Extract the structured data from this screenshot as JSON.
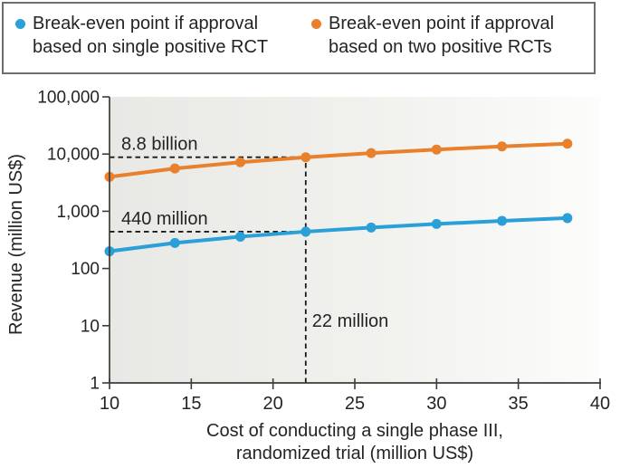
{
  "legend": {
    "items": [
      {
        "label": "Break-even point if approval based on single positive RCT",
        "color": "#2b9fd8"
      },
      {
        "label": "Break-even point if approval based on two positive RCTs",
        "color": "#e8802c"
      }
    ]
  },
  "chart_data": {
    "type": "line",
    "x": [
      10,
      14,
      18,
      22,
      26,
      30,
      34,
      38
    ],
    "series": [
      {
        "name": "Break-even point if approval based on single positive RCT",
        "color": "#2b9fd8",
        "values": [
          200,
          280,
          360,
          440,
          520,
          600,
          680,
          760
        ]
      },
      {
        "name": "Break-even point if approval based on two positive RCTs",
        "color": "#e8802c",
        "values": [
          4000,
          5600,
          7200,
          8800,
          10400,
          12000,
          13600,
          15200
        ]
      }
    ],
    "xlabel_lines": [
      "Cost of conducting a single phase III,",
      "randomized trial (million US$)"
    ],
    "ylabel": "Revenue (million US$)",
    "x_ticks": [
      10,
      15,
      20,
      25,
      30,
      35,
      40
    ],
    "y_ticks": [
      1,
      10,
      100,
      1000,
      10000,
      100000
    ],
    "y_tick_labels": [
      "1",
      "10",
      "100",
      "1,000",
      "10,000",
      "100,000"
    ],
    "xlim": [
      10,
      40
    ],
    "ylim": [
      1,
      100000
    ],
    "y_scale": "log",
    "grid": false,
    "legend_position": "top",
    "plot_bg_left": "#e8e8e5",
    "plot_bg_right": "#fcfcfb",
    "axis_color": "#3c3c3c",
    "dash_color": "#1a1a1a",
    "annotations": [
      {
        "type": "hline",
        "text": "8.8 billion",
        "y": 8800,
        "x_end": 22
      },
      {
        "type": "hline",
        "text": "440 million",
        "y": 440,
        "x_end": 22
      },
      {
        "type": "vline",
        "text": "22 million",
        "x": 22,
        "y_top": 8800
      }
    ]
  }
}
